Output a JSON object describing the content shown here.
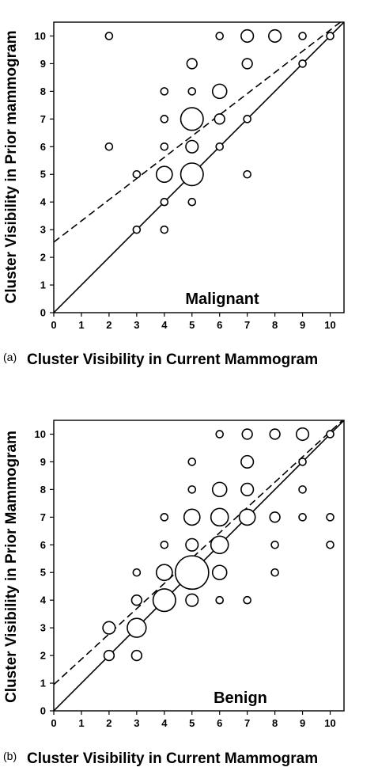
{
  "chart_data": [
    {
      "type": "scatter",
      "panel_tag": "(a)",
      "title": "Malignant",
      "xlabel": "Cluster Visibility in Current Mammogram",
      "ylabel": "Cluster Visibility in Prior mammogram",
      "xlim": [
        0,
        10.5
      ],
      "ylim": [
        0,
        10.5
      ],
      "x_ticks": [
        "0",
        "1",
        "2",
        "3",
        "4",
        "5",
        "6",
        "7",
        "8",
        "9",
        "10"
      ],
      "y_ticks": [
        "0",
        "1",
        "2",
        "3",
        "4",
        "5",
        "6",
        "7",
        "8",
        "9",
        "10"
      ],
      "grid": false,
      "legend": "none",
      "identity_line": {
        "from": [
          0,
          0
        ],
        "to": [
          10.5,
          10.5
        ],
        "style": "solid"
      },
      "fit_line": {
        "from": [
          0,
          2.55
        ],
        "to": [
          10.5,
          10.6
        ],
        "style": "dashed"
      },
      "points": [
        {
          "x": 2,
          "y": 10,
          "n": 1
        },
        {
          "x": 6,
          "y": 10,
          "n": 1
        },
        {
          "x": 7,
          "y": 10,
          "n": 3
        },
        {
          "x": 8,
          "y": 10,
          "n": 3
        },
        {
          "x": 9,
          "y": 10,
          "n": 1
        },
        {
          "x": 10,
          "y": 10,
          "n": 1
        },
        {
          "x": 5,
          "y": 9,
          "n": 2
        },
        {
          "x": 7,
          "y": 9,
          "n": 2
        },
        {
          "x": 9,
          "y": 9,
          "n": 1
        },
        {
          "x": 4,
          "y": 8,
          "n": 1
        },
        {
          "x": 5,
          "y": 8,
          "n": 1
        },
        {
          "x": 6,
          "y": 8,
          "n": 4
        },
        {
          "x": 4,
          "y": 7,
          "n": 1
        },
        {
          "x": 5,
          "y": 7,
          "n": 10
        },
        {
          "x": 6,
          "y": 7,
          "n": 2
        },
        {
          "x": 7,
          "y": 7,
          "n": 1
        },
        {
          "x": 2,
          "y": 6,
          "n": 1
        },
        {
          "x": 4,
          "y": 6,
          "n": 1
        },
        {
          "x": 5,
          "y": 6,
          "n": 3
        },
        {
          "x": 6,
          "y": 6,
          "n": 1
        },
        {
          "x": 3,
          "y": 5,
          "n": 1
        },
        {
          "x": 4,
          "y": 5,
          "n": 5
        },
        {
          "x": 5,
          "y": 5,
          "n": 10
        },
        {
          "x": 7,
          "y": 5,
          "n": 1
        },
        {
          "x": 4,
          "y": 4,
          "n": 1
        },
        {
          "x": 5,
          "y": 4,
          "n": 1
        },
        {
          "x": 3,
          "y": 3,
          "n": 1
        },
        {
          "x": 4,
          "y": 3,
          "n": 1
        }
      ]
    },
    {
      "type": "scatter",
      "panel_tag": "(b)",
      "title": "Benign",
      "xlabel": "Cluster Visibility in Current Mammogram",
      "ylabel": "Cluster Visibility in Prior Mammogram",
      "xlim": [
        0,
        10.5
      ],
      "ylim": [
        0,
        10.5
      ],
      "x_ticks": [
        "0",
        "1",
        "2",
        "3",
        "4",
        "5",
        "6",
        "7",
        "8",
        "9",
        "10"
      ],
      "y_ticks": [
        "0",
        "1",
        "2",
        "3",
        "4",
        "5",
        "6",
        "7",
        "8",
        "9",
        "10"
      ],
      "grid": false,
      "legend": "none",
      "identity_line": {
        "from": [
          0,
          0
        ],
        "to": [
          10.5,
          10.5
        ],
        "style": "solid"
      },
      "fit_line": {
        "from": [
          0,
          0.95
        ],
        "to": [
          10.5,
          10.55
        ],
        "style": "dashed"
      },
      "points": [
        {
          "x": 6,
          "y": 10,
          "n": 1
        },
        {
          "x": 7,
          "y": 10,
          "n": 2
        },
        {
          "x": 8,
          "y": 10,
          "n": 2
        },
        {
          "x": 9,
          "y": 10,
          "n": 3
        },
        {
          "x": 10,
          "y": 10,
          "n": 1
        },
        {
          "x": 5,
          "y": 9,
          "n": 1
        },
        {
          "x": 7,
          "y": 9,
          "n": 3
        },
        {
          "x": 9,
          "y": 9,
          "n": 1
        },
        {
          "x": 5,
          "y": 8,
          "n": 1
        },
        {
          "x": 6,
          "y": 8,
          "n": 4
        },
        {
          "x": 7,
          "y": 8,
          "n": 3
        },
        {
          "x": 9,
          "y": 8,
          "n": 1
        },
        {
          "x": 4,
          "y": 7,
          "n": 1
        },
        {
          "x": 5,
          "y": 7,
          "n": 5
        },
        {
          "x": 6,
          "y": 7,
          "n": 6
        },
        {
          "x": 7,
          "y": 7,
          "n": 5
        },
        {
          "x": 8,
          "y": 7,
          "n": 2
        },
        {
          "x": 9,
          "y": 7,
          "n": 1
        },
        {
          "x": 10,
          "y": 7,
          "n": 1
        },
        {
          "x": 4,
          "y": 6,
          "n": 1
        },
        {
          "x": 5,
          "y": 6,
          "n": 3
        },
        {
          "x": 6,
          "y": 6,
          "n": 6
        },
        {
          "x": 8,
          "y": 6,
          "n": 1
        },
        {
          "x": 10,
          "y": 6,
          "n": 1
        },
        {
          "x": 3,
          "y": 5,
          "n": 1
        },
        {
          "x": 4,
          "y": 5,
          "n": 5
        },
        {
          "x": 5,
          "y": 5,
          "n": 22
        },
        {
          "x": 6,
          "y": 5,
          "n": 4
        },
        {
          "x": 8,
          "y": 5,
          "n": 1
        },
        {
          "x": 3,
          "y": 4,
          "n": 2
        },
        {
          "x": 4,
          "y": 4,
          "n": 10
        },
        {
          "x": 5,
          "y": 4,
          "n": 3
        },
        {
          "x": 6,
          "y": 4,
          "n": 1
        },
        {
          "x": 7,
          "y": 4,
          "n": 1
        },
        {
          "x": 2,
          "y": 3,
          "n": 3
        },
        {
          "x": 3,
          "y": 3,
          "n": 7
        },
        {
          "x": 2,
          "y": 2,
          "n": 2
        },
        {
          "x": 3,
          "y": 2,
          "n": 2
        }
      ]
    }
  ]
}
